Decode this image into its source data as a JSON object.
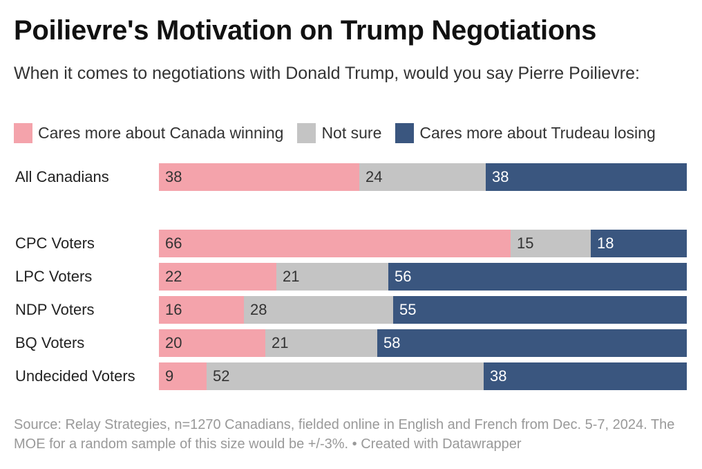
{
  "title": "Poilievre's Motivation on Trump Negotiations",
  "subtitle": "When it comes to negotiations with Donald Trump, would you say Pierre Poilievre:",
  "legend": [
    {
      "label": "Cares more about Canada winning",
      "color": "#f4a3ab"
    },
    {
      "label": "Not sure",
      "color": "#c4c4c4"
    },
    {
      "label": "Cares more about Trudeau losing",
      "color": "#3a567f"
    }
  ],
  "footer": {
    "source": "Source: Relay Strategies, n=1270 Canadians, fielded online in English and French from Dec. 5-7, 2024. The MOE for a random sample of this size would be +/-3%.",
    "credit": "• Created with Datawrapper"
  },
  "chart_data": {
    "type": "bar",
    "orientation": "horizontal",
    "stacked": true,
    "categories": [
      "All Canadians",
      "CPC Voters",
      "LPC Voters",
      "NDP Voters",
      "BQ Voters",
      "Undecided Voters"
    ],
    "series": [
      {
        "name": "Cares more about Canada winning",
        "values": [
          38,
          66,
          22,
          16,
          20,
          9
        ]
      },
      {
        "name": "Not sure",
        "values": [
          24,
          15,
          21,
          28,
          21,
          52
        ]
      },
      {
        "name": "Cares more about Trudeau losing",
        "values": [
          38,
          18,
          56,
          55,
          58,
          38
        ]
      }
    ],
    "legend_position": "top-left",
    "grid": false
  }
}
